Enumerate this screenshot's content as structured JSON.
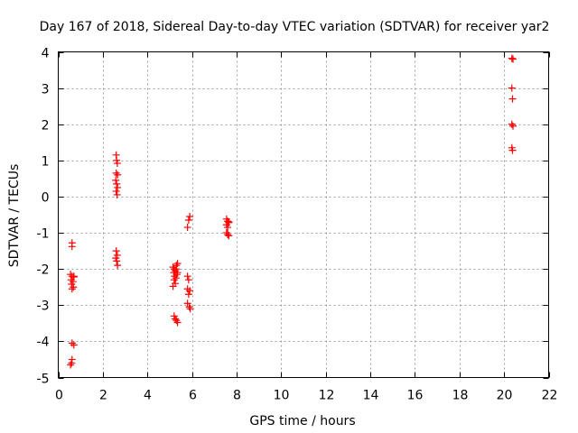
{
  "chart_data": {
    "type": "scatter",
    "title": "Day 167 of 2018, Sidereal Day-to-day VTEC variation (SDTVAR) for receiver yar2",
    "xlabel": "GPS time / hours",
    "ylabel": "SDTVAR / TECUs",
    "xlim": [
      0,
      22
    ],
    "ylim": [
      -5,
      4
    ],
    "xticks": [
      "0",
      "2",
      "4",
      "6",
      "8",
      "10",
      "12",
      "14",
      "16",
      "18",
      "20",
      "22"
    ],
    "yticks": [
      "-5",
      "-4",
      "-3",
      "-2",
      "-1",
      "0",
      "1",
      "2",
      "3",
      "4"
    ],
    "grid": true,
    "marker": "+",
    "color": "#ff0000",
    "series": [
      {
        "name": "SDTVAR",
        "points": [
          [
            0.62,
            -1.28
          ],
          [
            0.62,
            -1.38
          ],
          [
            0.55,
            -2.15
          ],
          [
            0.62,
            -2.2
          ],
          [
            0.7,
            -2.22
          ],
          [
            0.58,
            -2.3
          ],
          [
            0.66,
            -2.35
          ],
          [
            0.6,
            -2.42
          ],
          [
            0.68,
            -2.5
          ],
          [
            0.62,
            -2.55
          ],
          [
            0.7,
            -2.2
          ],
          [
            0.62,
            -4.05
          ],
          [
            0.7,
            -4.1
          ],
          [
            0.62,
            -4.5
          ],
          [
            0.6,
            -4.6
          ],
          [
            0.55,
            -4.65
          ],
          [
            2.6,
            1.15
          ],
          [
            2.62,
            1.0
          ],
          [
            2.65,
            0.92
          ],
          [
            2.6,
            0.65
          ],
          [
            2.66,
            0.6
          ],
          [
            2.58,
            0.45
          ],
          [
            2.62,
            0.35
          ],
          [
            2.66,
            0.25
          ],
          [
            2.6,
            0.15
          ],
          [
            2.64,
            0.05
          ],
          [
            2.6,
            -1.5
          ],
          [
            2.65,
            -1.62
          ],
          [
            2.58,
            -1.7
          ],
          [
            2.62,
            -1.78
          ],
          [
            2.66,
            -1.9
          ],
          [
            5.15,
            -1.95
          ],
          [
            5.2,
            -2.0
          ],
          [
            5.25,
            -2.05
          ],
          [
            5.3,
            -1.9
          ],
          [
            5.35,
            -1.85
          ],
          [
            5.18,
            -2.1
          ],
          [
            5.22,
            -2.2
          ],
          [
            5.28,
            -2.25
          ],
          [
            5.32,
            -2.15
          ],
          [
            5.2,
            -2.3
          ],
          [
            5.25,
            -2.4
          ],
          [
            5.15,
            -2.48
          ],
          [
            5.3,
            -2.0
          ],
          [
            5.35,
            -2.1
          ],
          [
            5.2,
            -3.3
          ],
          [
            5.25,
            -3.38
          ],
          [
            5.3,
            -3.42
          ],
          [
            5.35,
            -3.48
          ],
          [
            5.8,
            -2.2
          ],
          [
            5.85,
            -2.3
          ],
          [
            5.8,
            -2.55
          ],
          [
            5.9,
            -2.6
          ],
          [
            5.85,
            -2.7
          ],
          [
            5.8,
            -2.95
          ],
          [
            5.88,
            -3.05
          ],
          [
            5.92,
            -3.1
          ],
          [
            5.9,
            -0.55
          ],
          [
            5.85,
            -0.65
          ],
          [
            5.8,
            -0.85
          ],
          [
            7.55,
            -0.62
          ],
          [
            7.6,
            -0.68
          ],
          [
            7.65,
            -0.72
          ],
          [
            7.55,
            -0.78
          ],
          [
            7.6,
            -0.85
          ],
          [
            7.65,
            -0.7
          ],
          [
            7.55,
            -1.0
          ],
          [
            7.6,
            -1.05
          ],
          [
            7.65,
            -1.08
          ],
          [
            20.35,
            3.82
          ],
          [
            20.4,
            3.8
          ],
          [
            20.35,
            3.0
          ],
          [
            20.38,
            2.7
          ],
          [
            20.35,
            2.0
          ],
          [
            20.4,
            1.95
          ],
          [
            20.35,
            1.35
          ],
          [
            20.38,
            1.28
          ]
        ]
      }
    ]
  }
}
